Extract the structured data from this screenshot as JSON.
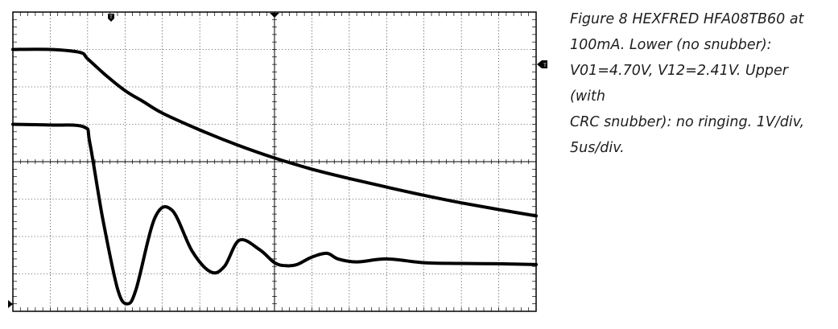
{
  "caption": "Figure 8 HEXFRED HFA08TB60 at\n100mA.  Lower (no snubber):\nV01=4.70V, V12=2.41V.  Upper (with\nCRC snubber): no ringing.  1V/div,\n5us/div.",
  "chart_data": {
    "type": "line",
    "title": "",
    "xlabel": "",
    "ylabel": "",
    "x_unit": "us",
    "y_unit": "V",
    "x_scale_per_div": 5,
    "y_scale_per_div": 1,
    "divisions_x": 14,
    "divisions_y": 8,
    "xlim": [
      0,
      70
    ],
    "ylim": [
      0,
      8
    ],
    "grid": true,
    "trigger_marker": "T",
    "series": [
      {
        "name": "Upper (with CRC snubber)",
        "color": "#000000",
        "x": [
          0,
          5,
          9,
          10,
          12.5,
          15,
          17.5,
          20,
          25,
          30,
          35,
          40,
          45,
          50,
          55,
          60,
          65,
          70
        ],
        "values": [
          7.0,
          7.0,
          6.92,
          6.75,
          6.3,
          5.9,
          5.6,
          5.3,
          4.85,
          4.45,
          4.1,
          3.8,
          3.55,
          3.32,
          3.1,
          2.9,
          2.72,
          2.55
        ]
      },
      {
        "name": "Lower (no snubber)",
        "color": "#000000",
        "x": [
          0,
          5,
          9.5,
          10.3,
          12,
          14,
          15.3,
          16.5,
          19,
          21.3,
          24,
          26.5,
          28.3,
          30.3,
          33,
          35,
          36.5,
          38,
          40,
          42,
          43.5,
          46,
          50,
          55,
          60,
          65,
          70
        ],
        "values": [
          5.0,
          4.98,
          4.93,
          4.5,
          2.5,
          0.6,
          0.2,
          0.6,
          2.5,
          2.7,
          1.6,
          1.05,
          1.2,
          1.9,
          1.65,
          1.3,
          1.22,
          1.25,
          1.45,
          1.55,
          1.4,
          1.32,
          1.4,
          1.3,
          1.28,
          1.27,
          1.25
        ]
      }
    ]
  }
}
